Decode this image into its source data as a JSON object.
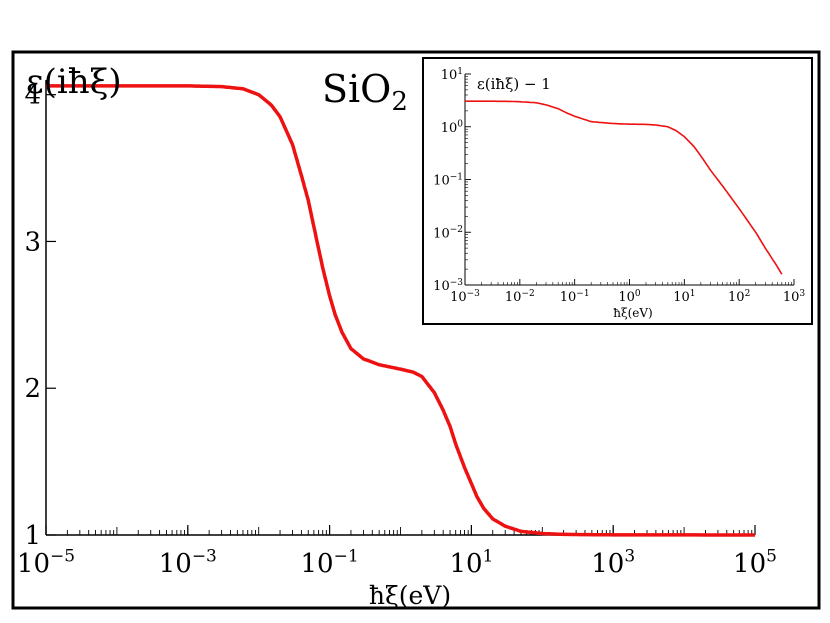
{
  "chart_data": [
    {
      "type": "line",
      "x_scale": "log",
      "y_scale": "linear",
      "ylabel": "ε(iħξ)",
      "xlabel": "ħξ(eV)",
      "annotation": {
        "base": "SiO",
        "subscript": "2"
      },
      "xlim": [
        1e-05,
        100000
      ],
      "ylim": [
        1,
        4.1
      ],
      "xticks": [
        {
          "base": "10",
          "exp": "−5"
        },
        {
          "base": "10",
          "exp": "−3"
        },
        {
          "base": "10",
          "exp": "−1"
        },
        {
          "base": "10",
          "exp": "1"
        },
        {
          "base": "10",
          "exp": "3"
        },
        {
          "base": "10",
          "exp": "5"
        }
      ],
      "xtick_values": [
        1e-05,
        0.001,
        0.1,
        10,
        1000,
        100000
      ],
      "yticks": [
        "1",
        "2",
        "3",
        "4"
      ],
      "ytick_values": [
        1,
        2,
        3,
        4
      ],
      "series": [
        {
          "name": "ε(iħξ)",
          "color": "#ee1111",
          "x": [
            1e-05,
            0.0001,
            0.001,
            0.003,
            0.006,
            0.01,
            0.015,
            0.02,
            0.03,
            0.04,
            0.05,
            0.06,
            0.07,
            0.08,
            0.1,
            0.12,
            0.15,
            0.2,
            0.3,
            0.5,
            1,
            1.5,
            2,
            3,
            4,
            5,
            6,
            8,
            10,
            12,
            15,
            20,
            30,
            50,
            100,
            200,
            1000,
            100000
          ],
          "y": [
            4.06,
            4.06,
            4.06,
            4.055,
            4.04,
            4.0,
            3.93,
            3.85,
            3.66,
            3.45,
            3.28,
            3.1,
            2.95,
            2.82,
            2.63,
            2.5,
            2.38,
            2.27,
            2.2,
            2.16,
            2.13,
            2.11,
            2.08,
            1.97,
            1.85,
            1.74,
            1.62,
            1.46,
            1.35,
            1.26,
            1.18,
            1.11,
            1.06,
            1.025,
            1.01,
            1.004,
            1.001,
            1.0
          ]
        }
      ]
    },
    {
      "type": "line",
      "x_scale": "log",
      "y_scale": "log",
      "ylabel": "ε(iħξ) − 1",
      "xlabel": "ħξ(eV)",
      "xlim": [
        0.001,
        1000
      ],
      "ylim": [
        0.001,
        10
      ],
      "xticks": [
        {
          "base": "10",
          "exp": "−3"
        },
        {
          "base": "10",
          "exp": "−2"
        },
        {
          "base": "10",
          "exp": "−1"
        },
        {
          "base": "10",
          "exp": "0"
        },
        {
          "base": "10",
          "exp": "1"
        },
        {
          "base": "10",
          "exp": "2"
        },
        {
          "base": "10",
          "exp": "3"
        }
      ],
      "xtick_values": [
        0.001,
        0.01,
        0.1,
        1,
        10,
        100,
        1000
      ],
      "yticks": [
        {
          "base": "10",
          "exp": "−3"
        },
        {
          "base": "10",
          "exp": "−2"
        },
        {
          "base": "10",
          "exp": "−1"
        },
        {
          "base": "10",
          "exp": "0"
        },
        {
          "base": "10",
          "exp": "1"
        }
      ],
      "ytick_values": [
        0.001,
        0.01,
        0.1,
        1,
        10
      ],
      "series": [
        {
          "name": "ε(iħξ) − 1",
          "color": "#ee1111",
          "x": [
            0.001,
            0.003,
            0.006,
            0.01,
            0.02,
            0.03,
            0.05,
            0.07,
            0.1,
            0.2,
            0.5,
            1,
            2,
            3,
            5,
            7,
            10,
            15,
            20,
            30,
            50,
            100,
            200,
            300,
            500,
            600
          ],
          "y": [
            3.05,
            3.05,
            3.03,
            2.98,
            2.85,
            2.6,
            2.2,
            1.85,
            1.58,
            1.25,
            1.15,
            1.12,
            1.11,
            1.08,
            1.0,
            0.85,
            0.65,
            0.42,
            0.28,
            0.15,
            0.075,
            0.028,
            0.01,
            0.005,
            0.0022,
            0.0016
          ]
        }
      ]
    }
  ]
}
